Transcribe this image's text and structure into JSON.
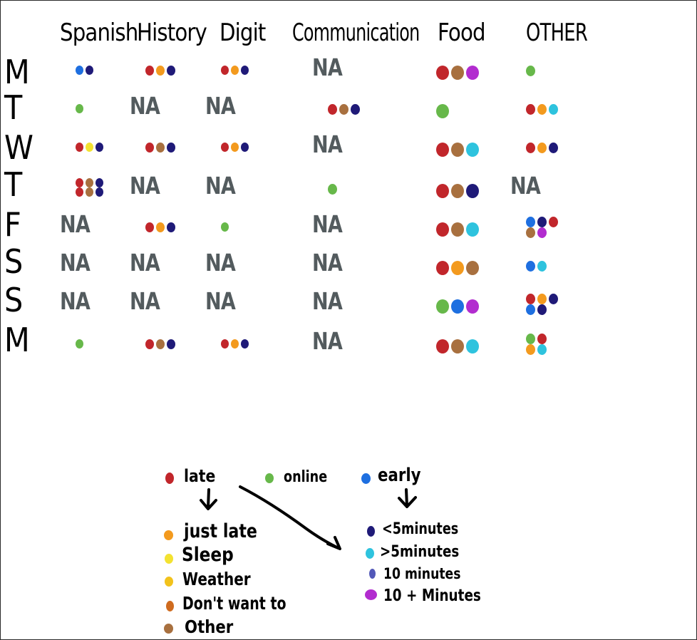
{
  "columns": [
    "Spanish",
    "History",
    "Digit",
    "Communication",
    "Food",
    "OTHER"
  ],
  "days": [
    "M",
    "T",
    "W",
    "T",
    "F",
    "S",
    "S",
    "M"
  ],
  "na_label": "NA",
  "colors": {
    "late": "#c1262b",
    "online": "#67b84a",
    "early": "#1e6fe0",
    "just_late": "#f39a1e",
    "sleep": "#f3e231",
    "weather": "#f2c21b",
    "dont_want_to": "#cf6b1f",
    "other": "#a8703f",
    "lt5": "#1f1a78",
    "gt5": "#2ec3de",
    "ten": "#5258b8",
    "ten_plus": "#b22ccf"
  },
  "grid": [
    [
      [
        "early",
        "lt5"
      ],
      [
        "late",
        "just_late",
        "lt5"
      ],
      [
        "late",
        "just_late",
        "lt5"
      ],
      "NA",
      [
        "late",
        "other",
        "ten_plus"
      ],
      [
        "online"
      ]
    ],
    [
      [
        "online"
      ],
      "NA",
      "NA",
      [
        "late",
        "other",
        "lt5"
      ],
      [
        "online"
      ],
      [
        "late",
        "just_late",
        "gt5"
      ]
    ],
    [
      [
        "late",
        "sleep",
        "lt5"
      ],
      [
        "late",
        "other",
        "lt5"
      ],
      [
        "late",
        "just_late",
        "lt5"
      ],
      "NA",
      [
        "late",
        "other",
        "gt5"
      ],
      [
        "late",
        "just_late",
        "lt5"
      ]
    ],
    [
      [
        "late",
        "other",
        "lt5",
        "late",
        "other",
        "lt5"
      ],
      "NA",
      "NA",
      [
        "online"
      ],
      [
        "late",
        "other",
        "lt5"
      ],
      "NA"
    ],
    [
      "NA",
      [
        "late",
        "just_late",
        "lt5"
      ],
      [
        "online"
      ],
      "NA",
      [
        "late",
        "other",
        "gt5"
      ],
      [
        "early",
        "lt5",
        "late",
        "other",
        "ten_plus"
      ]
    ],
    [
      "NA",
      "NA",
      "NA",
      "NA",
      [
        "late",
        "just_late",
        "other"
      ],
      [
        "early",
        "gt5"
      ]
    ],
    [
      "NA",
      "NA",
      "NA",
      "NA",
      [
        "online",
        "early",
        "ten_plus"
      ],
      [
        "late",
        "just_late",
        "lt5",
        "early",
        "lt5"
      ]
    ],
    [
      [
        "online"
      ],
      [
        "late",
        "other",
        "lt5"
      ],
      [
        "late",
        "just_late",
        "lt5"
      ],
      "NA",
      [
        "late",
        "other",
        "gt5"
      ],
      [
        "online",
        "late",
        "just_late",
        "gt5"
      ]
    ]
  ],
  "legend": {
    "late": "late",
    "online": "online",
    "early": "early",
    "late_reasons": [
      "just late",
      "Sleep",
      "Weather",
      "Don't want to",
      "Other"
    ],
    "early_amounts": [
      "<5minutes",
      ">5minutes",
      "10 minutes",
      "10 + Minutes"
    ]
  }
}
